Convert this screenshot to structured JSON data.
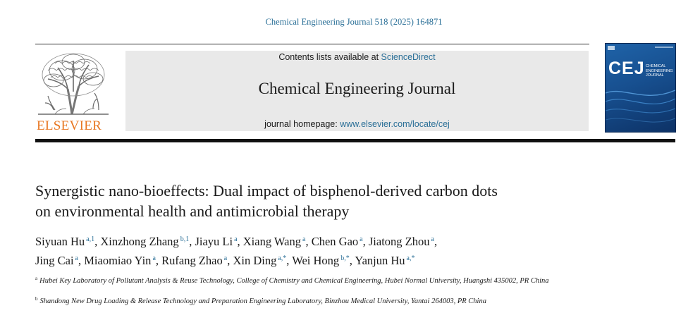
{
  "header": {
    "citation": "Chemical Engineering Journal 518 (2025) 164871",
    "contents_prefix": "Contents lists available at ",
    "contents_link": "ScienceDirect",
    "journal_title": "Chemical Engineering Journal",
    "homepage_prefix": "journal homepage: ",
    "homepage_link": "www.elsevier.com/locate/cej",
    "publisher": "ELSEVIER",
    "cover_abbr": "CEJ",
    "cover_name": "CHEMICAL ENGINEERING JOURNAL"
  },
  "article": {
    "title_line1": "Synergistic nano-bioeffects: Dual impact of bisphenol-derived carbon dots",
    "title_line2": "on environmental health and antimicrobial therapy",
    "authors_line1": [
      {
        "name": "Siyuan Hu",
        "sup": "a,1",
        "sep": ", "
      },
      {
        "name": "Xinzhong Zhang",
        "sup": "b,1",
        "sep": ", "
      },
      {
        "name": "Jiayu Li",
        "sup": "a",
        "sep": ", "
      },
      {
        "name": "Xiang Wang",
        "sup": "a",
        "sep": ", "
      },
      {
        "name": "Chen Gao",
        "sup": "a",
        "sep": ", "
      },
      {
        "name": "Jiatong Zhou",
        "sup": "a",
        "sep": ","
      }
    ],
    "authors_line2": [
      {
        "name": "Jing Cai",
        "sup": "a",
        "sep": ", "
      },
      {
        "name": "Miaomiao Yin",
        "sup": "a",
        "sep": ", "
      },
      {
        "name": "Rufang Zhao",
        "sup": "a",
        "sep": ", "
      },
      {
        "name": "Xin Ding",
        "sup": "a,*",
        "sep": ", "
      },
      {
        "name": "Wei Hong",
        "sup": "b,*",
        "sep": ", "
      },
      {
        "name": "Yanjun Hu",
        "sup": "a,*",
        "sep": ""
      }
    ],
    "affiliation_a_mark": "a",
    "affiliation_a": "Hubei Key Laboratory of Pollutant Analysis & Reuse Technology, College of Chemistry and Chemical Engineering, Hubei Normal University, Huangshi 435002, PR China",
    "affiliation_b_mark": "b",
    "affiliation_b": "Shandong New Drug Loading & Release Technology and Preparation Engineering Laboratory, Binzhou Medical University, Yantai 264003, PR China"
  },
  "colors": {
    "link": "#2a6f97",
    "publisher": "#e87722",
    "banner_bg": "#e9e9e9",
    "cover_blue": "#174f8f"
  }
}
